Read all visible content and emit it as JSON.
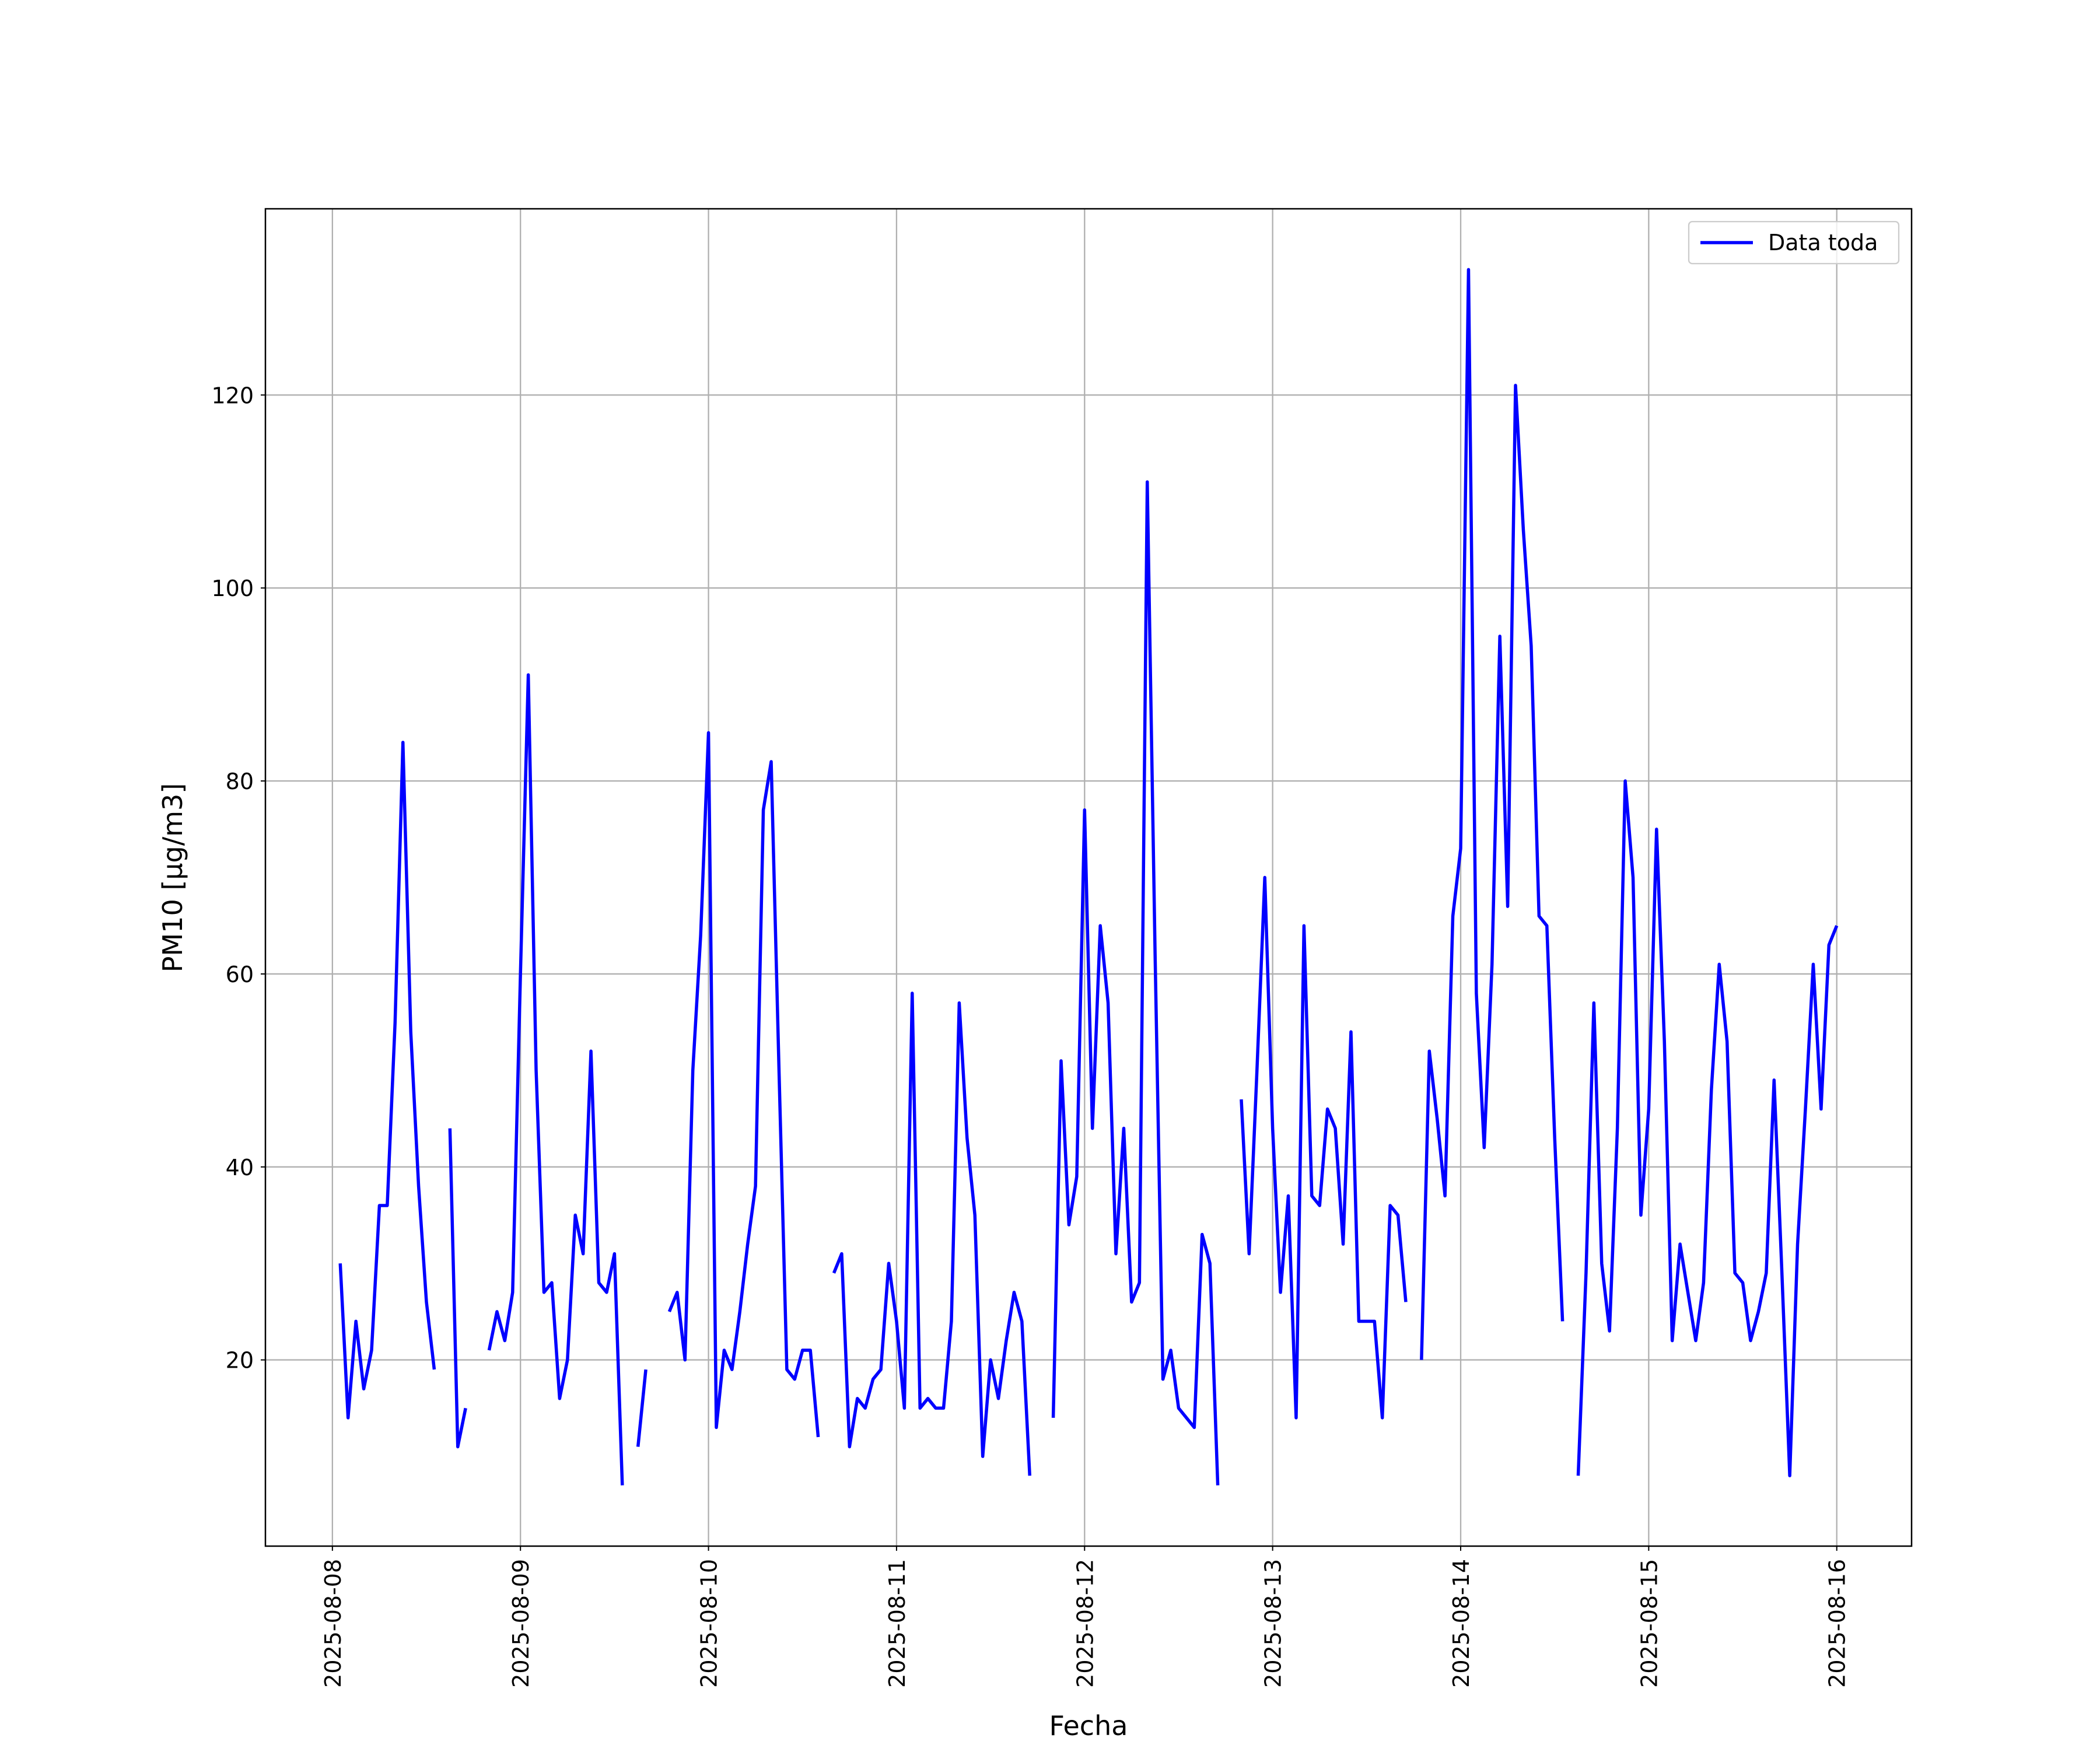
{
  "chart_data": {
    "type": "line",
    "x_label": "Fecha",
    "y_label": "PM10 [μg/m3]",
    "grid": true,
    "legend": "upper right",
    "xlim": [
      "2025-08-07 15:27",
      "2025-08-16 09:33"
    ],
    "xticks": [
      "2025-08-08",
      "2025-08-09",
      "2025-08-10",
      "2025-08-11",
      "2025-08-12",
      "2025-08-13",
      "2025-08-14",
      "2025-08-15",
      "2025-08-16"
    ],
    "ylim": [
      0.7,
      139.3
    ],
    "yticks": [
      20,
      40,
      60,
      80,
      100,
      120
    ],
    "x": [
      "2025-08-08 01:00",
      "2025-08-08 02:00",
      "2025-08-08 03:00",
      "2025-08-08 04:00",
      "2025-08-08 05:00",
      "2025-08-08 06:00",
      "2025-08-08 07:00",
      "2025-08-08 08:00",
      "2025-08-08 09:00",
      "2025-08-08 10:00",
      "2025-08-08 11:00",
      "2025-08-08 12:00",
      "2025-08-08 13:00",
      "2025-08-08 14:00",
      "2025-08-08 15:00",
      "2025-08-08 16:00",
      "2025-08-08 17:00",
      "2025-08-08 18:00",
      "2025-08-08 19:00",
      "2025-08-08 20:00",
      "2025-08-08 21:00",
      "2025-08-08 22:00",
      "2025-08-08 23:00",
      "2025-08-09 00:00",
      "2025-08-09 01:00",
      "2025-08-09 02:00",
      "2025-08-09 03:00",
      "2025-08-09 04:00",
      "2025-08-09 05:00",
      "2025-08-09 06:00",
      "2025-08-09 07:00",
      "2025-08-09 08:00",
      "2025-08-09 09:00",
      "2025-08-09 10:00",
      "2025-08-09 11:00",
      "2025-08-09 12:00",
      "2025-08-09 13:00",
      "2025-08-09 14:00",
      "2025-08-09 15:00",
      "2025-08-09 16:00",
      "2025-08-09 17:00",
      "2025-08-09 18:00",
      "2025-08-09 19:00",
      "2025-08-09 20:00",
      "2025-08-09 21:00",
      "2025-08-09 22:00",
      "2025-08-09 23:00",
      "2025-08-10 00:00",
      "2025-08-10 01:00",
      "2025-08-10 02:00",
      "2025-08-10 03:00",
      "2025-08-10 04:00",
      "2025-08-10 05:00",
      "2025-08-10 06:00",
      "2025-08-10 07:00",
      "2025-08-10 08:00",
      "2025-08-10 09:00",
      "2025-08-10 10:00",
      "2025-08-10 11:00",
      "2025-08-10 12:00",
      "2025-08-10 13:00",
      "2025-08-10 14:00",
      "2025-08-10 15:00",
      "2025-08-10 16:00",
      "2025-08-10 17:00",
      "2025-08-10 18:00",
      "2025-08-10 19:00",
      "2025-08-10 20:00",
      "2025-08-10 21:00",
      "2025-08-10 22:00",
      "2025-08-10 23:00",
      "2025-08-11 00:00",
      "2025-08-11 01:00",
      "2025-08-11 02:00",
      "2025-08-11 03:00",
      "2025-08-11 04:00",
      "2025-08-11 05:00",
      "2025-08-11 06:00",
      "2025-08-11 07:00",
      "2025-08-11 08:00",
      "2025-08-11 09:00",
      "2025-08-11 10:00",
      "2025-08-11 11:00",
      "2025-08-11 12:00",
      "2025-08-11 13:00",
      "2025-08-11 14:00",
      "2025-08-11 15:00",
      "2025-08-11 16:00",
      "2025-08-11 17:00",
      "2025-08-11 18:00",
      "2025-08-11 19:00",
      "2025-08-11 20:00",
      "2025-08-11 21:00",
      "2025-08-11 22:00",
      "2025-08-11 23:00",
      "2025-08-12 00:00",
      "2025-08-12 01:00",
      "2025-08-12 02:00",
      "2025-08-12 03:00",
      "2025-08-12 04:00",
      "2025-08-12 05:00",
      "2025-08-12 06:00",
      "2025-08-12 07:00",
      "2025-08-12 08:00",
      "2025-08-12 09:00",
      "2025-08-12 10:00",
      "2025-08-12 11:00",
      "2025-08-12 12:00",
      "2025-08-12 13:00",
      "2025-08-12 14:00",
      "2025-08-12 15:00",
      "2025-08-12 16:00",
      "2025-08-12 17:00",
      "2025-08-12 18:00",
      "2025-08-12 19:00",
      "2025-08-12 20:00",
      "2025-08-12 21:00",
      "2025-08-12 22:00",
      "2025-08-12 23:00",
      "2025-08-13 00:00",
      "2025-08-13 01:00",
      "2025-08-13 02:00",
      "2025-08-13 03:00",
      "2025-08-13 04:00",
      "2025-08-13 05:00",
      "2025-08-13 06:00",
      "2025-08-13 07:00",
      "2025-08-13 08:00",
      "2025-08-13 09:00",
      "2025-08-13 10:00",
      "2025-08-13 11:00",
      "2025-08-13 12:00",
      "2025-08-13 13:00",
      "2025-08-13 14:00",
      "2025-08-13 15:00",
      "2025-08-13 16:00",
      "2025-08-13 17:00",
      "2025-08-13 18:00",
      "2025-08-13 19:00",
      "2025-08-13 20:00",
      "2025-08-13 21:00",
      "2025-08-13 22:00",
      "2025-08-13 23:00",
      "2025-08-14 00:00",
      "2025-08-14 01:00",
      "2025-08-14 02:00",
      "2025-08-14 03:00",
      "2025-08-14 04:00",
      "2025-08-14 05:00",
      "2025-08-14 06:00",
      "2025-08-14 07:00",
      "2025-08-14 08:00",
      "2025-08-14 09:00",
      "2025-08-14 10:00",
      "2025-08-14 11:00",
      "2025-08-14 12:00",
      "2025-08-14 13:00",
      "2025-08-14 14:00",
      "2025-08-14 15:00",
      "2025-08-14 16:00",
      "2025-08-14 17:00",
      "2025-08-14 18:00",
      "2025-08-14 19:00",
      "2025-08-14 20:00",
      "2025-08-14 21:00",
      "2025-08-14 22:00",
      "2025-08-14 23:00",
      "2025-08-15 00:00",
      "2025-08-15 01:00",
      "2025-08-15 02:00",
      "2025-08-15 03:00",
      "2025-08-15 04:00",
      "2025-08-15 05:00",
      "2025-08-15 06:00",
      "2025-08-15 07:00",
      "2025-08-15 08:00",
      "2025-08-15 09:00",
      "2025-08-15 10:00",
      "2025-08-15 11:00",
      "2025-08-15 12:00",
      "2025-08-15 13:00",
      "2025-08-15 14:00",
      "2025-08-15 15:00",
      "2025-08-15 16:00",
      "2025-08-15 17:00",
      "2025-08-15 18:00",
      "2025-08-15 19:00",
      "2025-08-15 20:00",
      "2025-08-15 21:00",
      "2025-08-15 22:00",
      "2025-08-15 23:00",
      "2025-08-16 00:00"
    ],
    "series": [
      {
        "name": "Data toda",
        "color": "#0000ff",
        "values": [
          30,
          14,
          24,
          17,
          21,
          36,
          36,
          55,
          84,
          54,
          38,
          26,
          19,
          null,
          44,
          11,
          15,
          null,
          null,
          21,
          25,
          22,
          27,
          60,
          91,
          50,
          27,
          28,
          16,
          20,
          35,
          31,
          52,
          28,
          27,
          31,
          7,
          null,
          11,
          19,
          null,
          null,
          25,
          27,
          20,
          50,
          64,
          85,
          13,
          21,
          19,
          25,
          32,
          38,
          77,
          82,
          50,
          19,
          18,
          21,
          21,
          12,
          null,
          29,
          31,
          11,
          16,
          15,
          18,
          19,
          30,
          24,
          15,
          58,
          15,
          16,
          15,
          15,
          24,
          57,
          43,
          35,
          10,
          20,
          16,
          22,
          27,
          24,
          8,
          null,
          null,
          14,
          51,
          34,
          39,
          77,
          44,
          65,
          57,
          31,
          44,
          26,
          28,
          111,
          62,
          18,
          21,
          15,
          14,
          13,
          33,
          30,
          7,
          null,
          null,
          47,
          31,
          50,
          70,
          44,
          27,
          37,
          14,
          65,
          37,
          36,
          46,
          44,
          32,
          54,
          24,
          24,
          24,
          14,
          36,
          35,
          26,
          null,
          20,
          52,
          45,
          37,
          66,
          73,
          133,
          58,
          42,
          61,
          95,
          67,
          121,
          106,
          94,
          66,
          65,
          43,
          24,
          null,
          8,
          29,
          57,
          30,
          23,
          44,
          80,
          70,
          35,
          46,
          75,
          53,
          22,
          32,
          27,
          22,
          28,
          48,
          61,
          53,
          29,
          28,
          22,
          25,
          29,
          49,
          29,
          8,
          32,
          46,
          61,
          46,
          63,
          65
        ]
      }
    ]
  }
}
